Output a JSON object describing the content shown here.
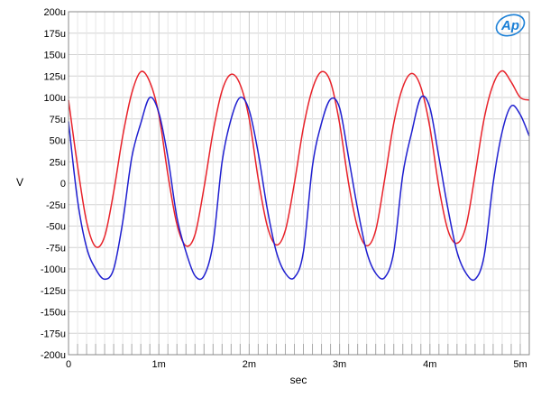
{
  "chart_data": {
    "type": "line",
    "title": "",
    "xlabel": "sec",
    "ylabel": "V",
    "xlim": [
      0,
      0.0051
    ],
    "ylim": [
      -0.0002,
      0.0002
    ],
    "x_ticks": [
      {
        "value": 0,
        "label": "0"
      },
      {
        "value": 0.001,
        "label": "1m"
      },
      {
        "value": 0.002,
        "label": "2m"
      },
      {
        "value": 0.003,
        "label": "3m"
      },
      {
        "value": 0.004,
        "label": "4m"
      },
      {
        "value": 0.005,
        "label": "5m"
      }
    ],
    "y_ticks": [
      {
        "value": 0.0002,
        "label": "200u"
      },
      {
        "value": 0.000175,
        "label": "175u"
      },
      {
        "value": 0.00015,
        "label": "150u"
      },
      {
        "value": 0.000125,
        "label": "125u"
      },
      {
        "value": 0.0001,
        "label": "100u"
      },
      {
        "value": 7.5e-05,
        "label": "75u"
      },
      {
        "value": 5e-05,
        "label": "50u"
      },
      {
        "value": 2.5e-05,
        "label": "25u"
      },
      {
        "value": 0,
        "label": "0"
      },
      {
        "value": -2.5e-05,
        "label": "-25u"
      },
      {
        "value": -5e-05,
        "label": "-50u"
      },
      {
        "value": -7.5e-05,
        "label": "-75u"
      },
      {
        "value": -0.0001,
        "label": "-100u"
      },
      {
        "value": -0.000125,
        "label": "-125u"
      },
      {
        "value": -0.00015,
        "label": "-150u"
      },
      {
        "value": -0.000175,
        "label": "-175u"
      },
      {
        "value": -0.0002,
        "label": "-200u"
      }
    ],
    "grid": true,
    "legend": "none",
    "logo_text": "Ap",
    "series": [
      {
        "color": "#e8222a",
        "x": [
          0,
          0.0001,
          0.0002,
          0.0003,
          0.0004,
          0.0005,
          0.0006,
          0.0007,
          0.0008,
          0.0009,
          0.001,
          0.0011,
          0.0012,
          0.0013,
          0.0014,
          0.0015,
          0.0016,
          0.0017,
          0.0018,
          0.0019,
          0.002,
          0.0021,
          0.0022,
          0.0023,
          0.0024,
          0.0025,
          0.0026,
          0.0027,
          0.0028,
          0.0029,
          0.003,
          0.0031,
          0.0032,
          0.0033,
          0.0034,
          0.0035,
          0.0036,
          0.0037,
          0.0038,
          0.0039,
          0.004,
          0.0041,
          0.0042,
          0.0043,
          0.0044,
          0.0045,
          0.0046,
          0.0047,
          0.0048,
          0.0049,
          0.005,
          0.0051
        ],
        "y": [
          9.7e-05,
          2e-05,
          -4.5e-05,
          -7.4e-05,
          -6.2e-05,
          -1e-05,
          5.5e-05,
          0.000105,
          0.00013,
          0.000118,
          8e-05,
          1e-05,
          -4.8e-05,
          -7.3e-05,
          -6e-05,
          -5e-06,
          6e-05,
          0.000108,
          0.000127,
          0.000115,
          7.5e-05,
          5e-06,
          -5e-05,
          -7.2e-05,
          -5.5e-05,
          0.0,
          6.5e-05,
          0.00011,
          0.00013,
          0.000118,
          7e-05,
          0.0,
          -5.2e-05,
          -7.3e-05,
          -5.5e-05,
          5e-06,
          7e-05,
          0.000112,
          0.000128,
          0.000112,
          6.5e-05,
          -5e-06,
          -5.5e-05,
          -7e-05,
          -5e-05,
          1e-05,
          7.5e-05,
          0.000115,
          0.000131,
          0.000118,
          0.0001,
          9.7e-05
        ]
      },
      {
        "color": "#1f1fd0",
        "x": [
          0,
          0.0001,
          0.0002,
          0.0003,
          0.0004,
          0.0005,
          0.0006,
          0.0007,
          0.0008,
          0.0009,
          0.001,
          0.0011,
          0.0012,
          0.0013,
          0.0014,
          0.0015,
          0.0016,
          0.0017,
          0.0018,
          0.0019,
          0.002,
          0.0021,
          0.0022,
          0.0023,
          0.0024,
          0.0025,
          0.0026,
          0.0027,
          0.0028,
          0.0029,
          0.003,
          0.0031,
          0.0032,
          0.0033,
          0.0034,
          0.0035,
          0.0036,
          0.0037,
          0.0038,
          0.0039,
          0.004,
          0.0041,
          0.0042,
          0.0043,
          0.0044,
          0.0045,
          0.0046,
          0.0047,
          0.0048,
          0.0049,
          0.005,
          0.0051
        ],
        "y": [
          7.2e-05,
          -2e-05,
          -7.5e-05,
          -0.0001,
          -0.000112,
          -0.0001,
          -4.5e-05,
          3e-05,
          7e-05,
          0.0001,
          8.2e-05,
          3e-05,
          -4e-05,
          -8e-05,
          -0.000108,
          -0.000108,
          -7e-05,
          2.5e-05,
          7.5e-05,
          0.0001,
          8.5e-05,
          3.5e-05,
          -3e-05,
          -8e-05,
          -0.000105,
          -0.00011,
          -8e-05,
          2e-05,
          7e-05,
          9.8e-05,
          8.8e-05,
          3e-05,
          -3e-05,
          -8e-05,
          -0.000105,
          -0.00011,
          -8e-05,
          1e-05,
          6e-05,
          0.0001,
          8.8e-05,
          3e-05,
          -3e-05,
          -8e-05,
          -0.000105,
          -0.000112,
          -8.5e-05,
          0.0,
          6e-05,
          9e-05,
          8e-05,
          5.5e-05
        ]
      }
    ]
  }
}
